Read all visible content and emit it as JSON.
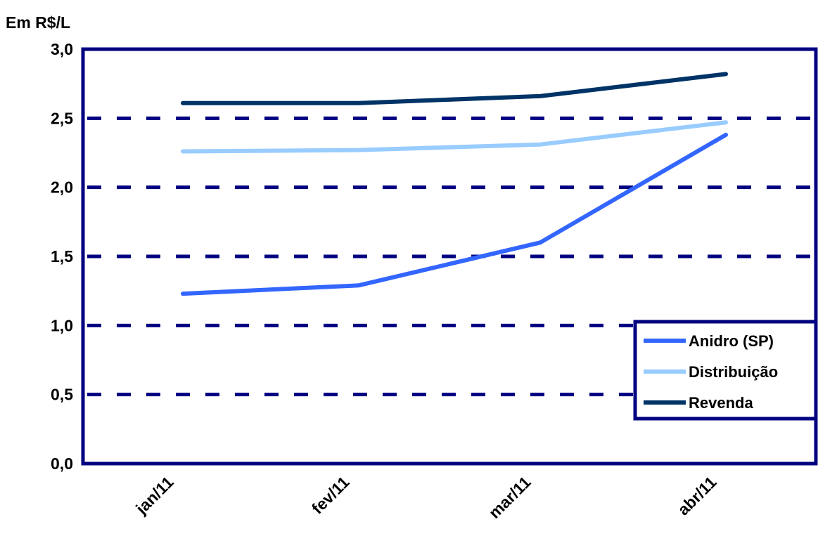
{
  "chart_data": {
    "type": "line",
    "ylabel": "Em R$/L",
    "categories": [
      "jan/11",
      "fev/11",
      "mar/11",
      "abr/11"
    ],
    "ylim": [
      0.0,
      3.0
    ],
    "yticks": [
      "0,0",
      "0,5",
      "1,0",
      "1,5",
      "2,0",
      "2,5",
      "3,0"
    ],
    "ytick_values": [
      0.0,
      0.5,
      1.0,
      1.5,
      2.0,
      2.5,
      3.0
    ],
    "grid": true,
    "legend_position": "bottom-right",
    "series": [
      {
        "name": "Anidro (SP)",
        "values": [
          1.23,
          1.29,
          1.6,
          2.38
        ],
        "color": "#3366ff"
      },
      {
        "name": "Distribuição",
        "values": [
          2.26,
          2.27,
          2.31,
          2.47
        ],
        "color": "#99ccff"
      },
      {
        "name": "Revenda",
        "values": [
          2.61,
          2.61,
          2.66,
          2.82
        ],
        "color": "#003366"
      }
    ],
    "frame_color": "#000080"
  }
}
